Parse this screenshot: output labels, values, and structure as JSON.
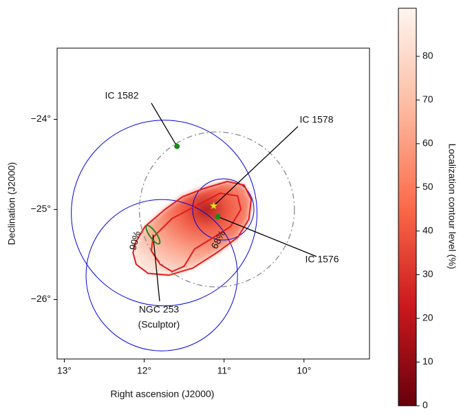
{
  "chart_data": {
    "type": "skymap",
    "xlabel": "Right ascension (J2000)",
    "ylabel": "Declination (J2000)",
    "xlim": [
      13.09,
      9.18
    ],
    "ylim": [
      -26.66,
      -23.21
    ],
    "xticks": [
      {
        "value": 13,
        "label": "13°"
      },
      {
        "value": 12,
        "label": "12°"
      },
      {
        "value": 11,
        "label": "11°"
      },
      {
        "value": 10,
        "label": "10°"
      }
    ],
    "yticks": [
      {
        "value": -24,
        "label": "−24°"
      },
      {
        "value": -25,
        "label": "−25°"
      },
      {
        "value": -26,
        "label": "−26°"
      }
    ],
    "colorbar": {
      "label": "Localization contour level (%)",
      "clim": [
        0,
        91
      ],
      "ticks": [
        0,
        10,
        20,
        30,
        40,
        50,
        60,
        70,
        80
      ],
      "colors": [
        "#67000d",
        "#cb181d",
        "#fb6a4a",
        "#fcbba1",
        "#fff5f0"
      ]
    },
    "contours": [
      {
        "label": "90%",
        "color": "#e31a1c",
        "ra": [
          12.11,
          11.99,
          11.74,
          11.52,
          11.26,
          10.96,
          10.75,
          10.66,
          10.69,
          10.83,
          11.09,
          11.39,
          11.69,
          11.95,
          12.1,
          12.14
        ],
        "dec": [
          -25.37,
          -25.19,
          -25.0,
          -24.86,
          -24.77,
          -24.69,
          -24.73,
          -24.89,
          -25.11,
          -25.31,
          -25.48,
          -25.65,
          -25.73,
          -25.71,
          -25.61,
          -25.48
        ]
      },
      {
        "label": "68%",
        "color": "#e31a1c",
        "ra": [
          11.89,
          11.65,
          11.35,
          11.05,
          10.83,
          10.79,
          10.92,
          11.13,
          11.37,
          11.5,
          11.65,
          11.8,
          11.91
        ],
        "dec": [
          -25.31,
          -25.1,
          -24.96,
          -24.82,
          -24.85,
          -25.0,
          -25.19,
          -25.31,
          -25.44,
          -25.63,
          -25.69,
          -25.61,
          -25.46
        ]
      }
    ],
    "circles": [
      {
        "ra": 11.75,
        "dec": -25.04,
        "radius": 1.03,
        "color": "#0000dd",
        "style": "solid"
      },
      {
        "ra": 11.78,
        "dec": -25.73,
        "radius": 0.84,
        "color": "#0000dd",
        "style": "solid"
      },
      {
        "ra": 11.01,
        "dec": -25.0,
        "radius": 0.34,
        "color": "#0000dd",
        "style": "solid"
      },
      {
        "ra": 11.09,
        "dec": -25.0,
        "radius": 0.86,
        "color": "#888888",
        "style": "dashdot"
      }
    ],
    "sources": [
      {
        "name": "IC 1582",
        "ra": 11.59,
        "dec": -24.3,
        "marker": "circle",
        "color": "#1a8a1a"
      },
      {
        "name": "IC 1578",
        "ra": 11.13,
        "dec": -24.96,
        "marker": "star",
        "color": "#e8e020"
      },
      {
        "name": "IC 1576",
        "ra": 11.08,
        "dec": -25.08,
        "marker": "circle",
        "color": "#1a8a1a"
      },
      {
        "name": "NGC 253",
        "alias": "(Sculptor)",
        "ra": 11.89,
        "dec": -25.28,
        "marker": "ellipse",
        "color": "#1a8a1a"
      }
    ]
  }
}
